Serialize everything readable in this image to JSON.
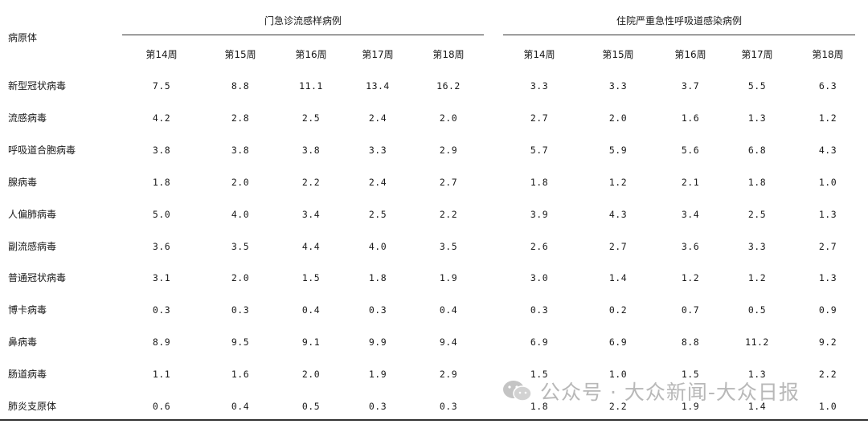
{
  "table": {
    "row_header": "病原体",
    "groups": [
      {
        "title": "门急诊流感样病例",
        "weeks": [
          "第14周",
          "第15周",
          "第16周",
          "第17周",
          "第18周"
        ]
      },
      {
        "title": "住院严重急性呼吸道感染病例",
        "weeks": [
          "第14周",
          "第15周",
          "第16周",
          "第17周",
          "第18周"
        ]
      }
    ],
    "rows": [
      {
        "pathogen": "新型冠状病毒",
        "values": [
          "7.5",
          "8.8",
          "11.1",
          "13.4",
          "16.2",
          "3.3",
          "3.3",
          "3.7",
          "5.5",
          "6.3"
        ]
      },
      {
        "pathogen": "流感病毒",
        "values": [
          "4.2",
          "2.8",
          "2.5",
          "2.4",
          "2.0",
          "2.7",
          "2.0",
          "1.6",
          "1.3",
          "1.2"
        ]
      },
      {
        "pathogen": "呼吸道合胞病毒",
        "values": [
          "3.8",
          "3.8",
          "3.8",
          "3.3",
          "2.9",
          "5.7",
          "5.9",
          "5.6",
          "6.8",
          "4.3"
        ]
      },
      {
        "pathogen": "腺病毒",
        "values": [
          "1.8",
          "2.0",
          "2.2",
          "2.4",
          "2.7",
          "1.8",
          "1.2",
          "2.1",
          "1.8",
          "1.0"
        ]
      },
      {
        "pathogen": "人偏肺病毒",
        "values": [
          "5.0",
          "4.0",
          "3.4",
          "2.5",
          "2.2",
          "3.9",
          "4.3",
          "3.4",
          "2.5",
          "1.3"
        ]
      },
      {
        "pathogen": "副流感病毒",
        "values": [
          "3.6",
          "3.5",
          "4.4",
          "4.0",
          "3.5",
          "2.6",
          "2.7",
          "3.6",
          "3.3",
          "2.7"
        ]
      },
      {
        "pathogen": "普通冠状病毒",
        "values": [
          "3.1",
          "2.0",
          "1.5",
          "1.8",
          "1.9",
          "3.0",
          "1.4",
          "1.2",
          "1.2",
          "1.3"
        ]
      },
      {
        "pathogen": "博卡病毒",
        "values": [
          "0.3",
          "0.3",
          "0.4",
          "0.3",
          "0.4",
          "0.3",
          "0.2",
          "0.7",
          "0.5",
          "0.9"
        ]
      },
      {
        "pathogen": "鼻病毒",
        "values": [
          "8.9",
          "9.5",
          "9.1",
          "9.9",
          "9.4",
          "6.9",
          "6.9",
          "8.8",
          "11.2",
          "9.2"
        ]
      },
      {
        "pathogen": "肠道病毒",
        "values": [
          "1.1",
          "1.6",
          "2.0",
          "1.9",
          "2.9",
          "1.5",
          "1.0",
          "1.5",
          "1.3",
          "2.2"
        ]
      },
      {
        "pathogen": "肺炎支原体",
        "values": [
          "0.6",
          "0.4",
          "0.5",
          "0.3",
          "0.3",
          "1.8",
          "2.2",
          "1.9",
          "1.4",
          "1.0"
        ]
      }
    ]
  },
  "watermark": {
    "text": "公众号 · 大众新闻-大众日报",
    "icon": "wechat-icon",
    "color": "#b8b8b8"
  }
}
